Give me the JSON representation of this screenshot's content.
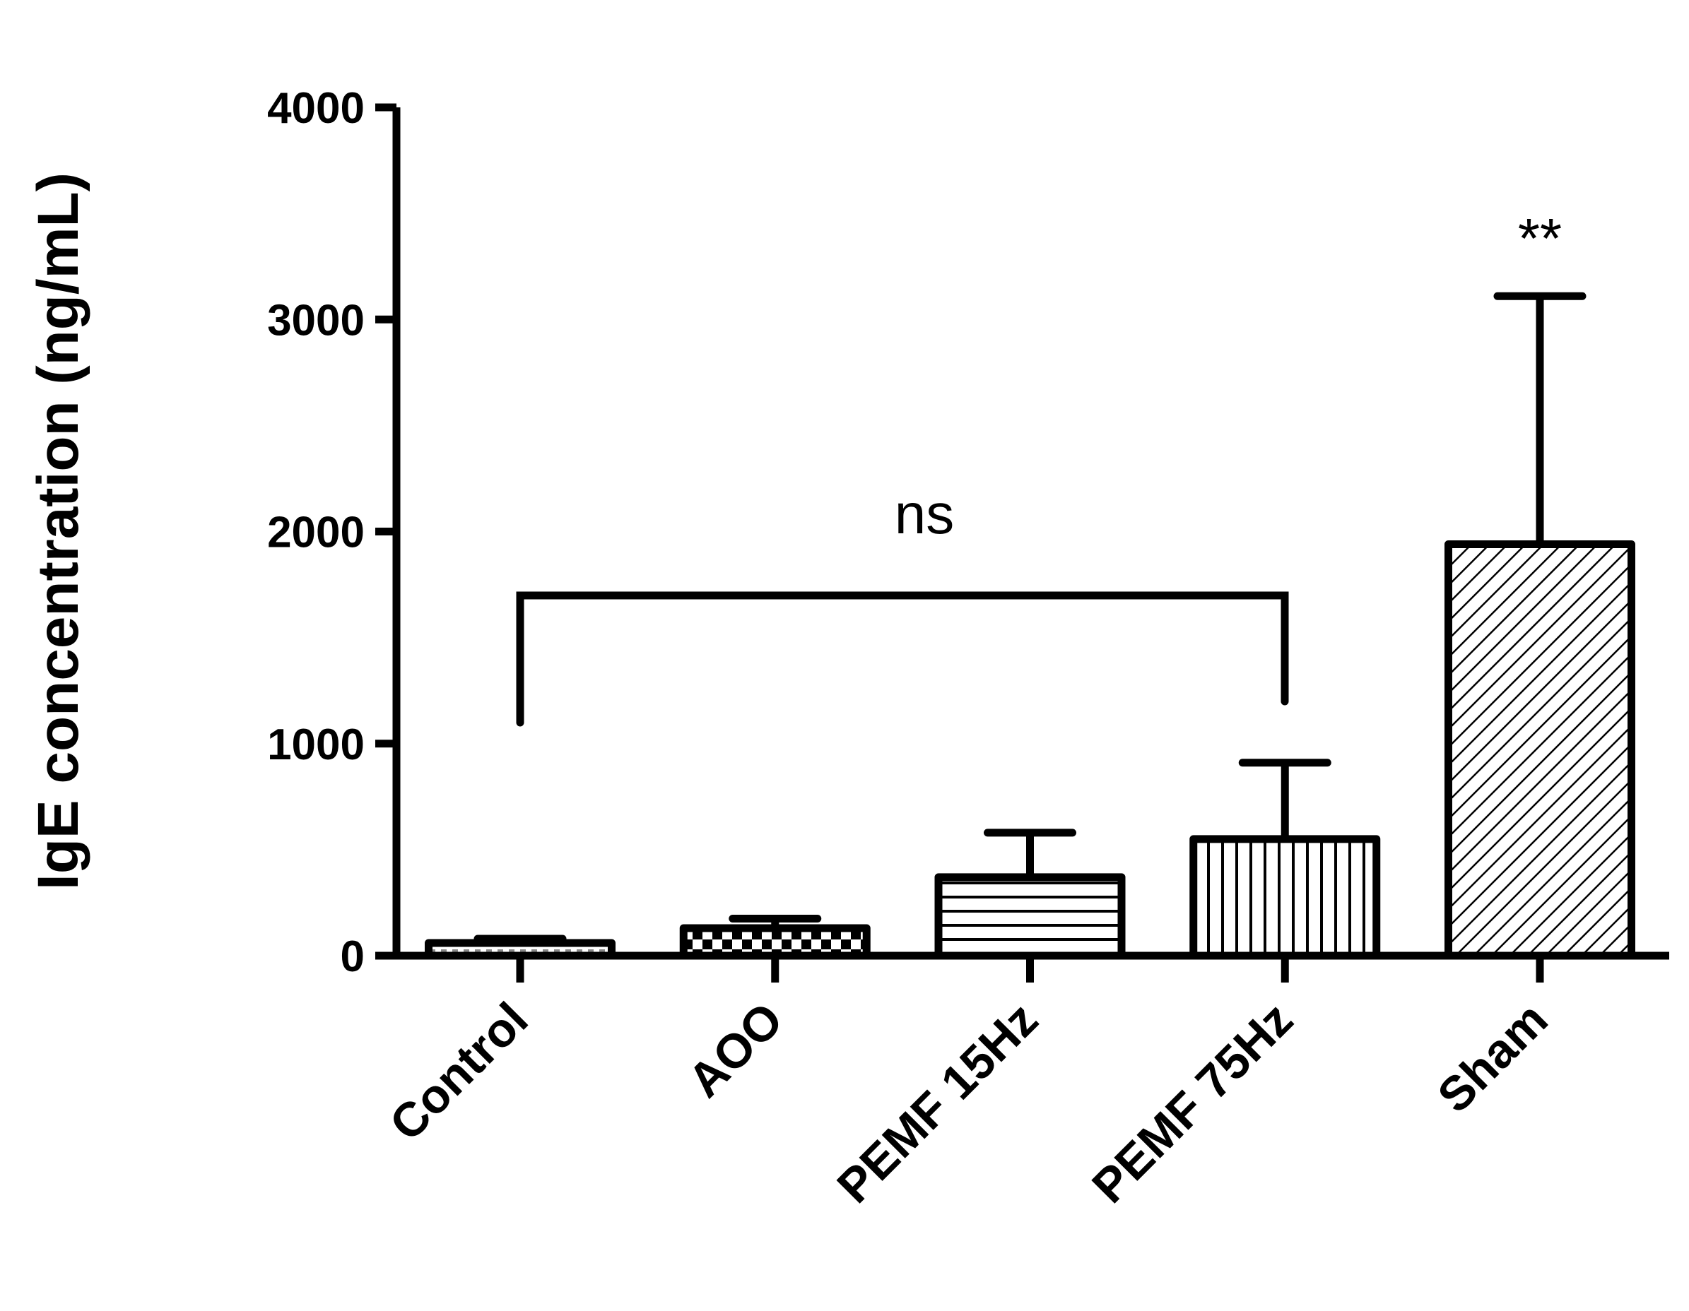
{
  "chart_data": {
    "type": "bar",
    "y_label": "IgE concentration (ng/mL)",
    "categories": [
      "Control",
      "AOO",
      "PEMF 15Hz",
      "PEMF 75Hz",
      "Sham"
    ],
    "values": [
      60,
      130,
      370,
      550,
      1940
    ],
    "errors": [
      20,
      45,
      210,
      360,
      1170
    ],
    "patterns": [
      "dots",
      "checker",
      "horizontal",
      "vertical",
      "diagonal"
    ],
    "color": "#000000",
    "ylim": [
      0,
      4000
    ],
    "yticks": [
      0,
      1000,
      2000,
      3000,
      4000
    ],
    "annotations": [
      "ns",
      "**"
    ]
  }
}
